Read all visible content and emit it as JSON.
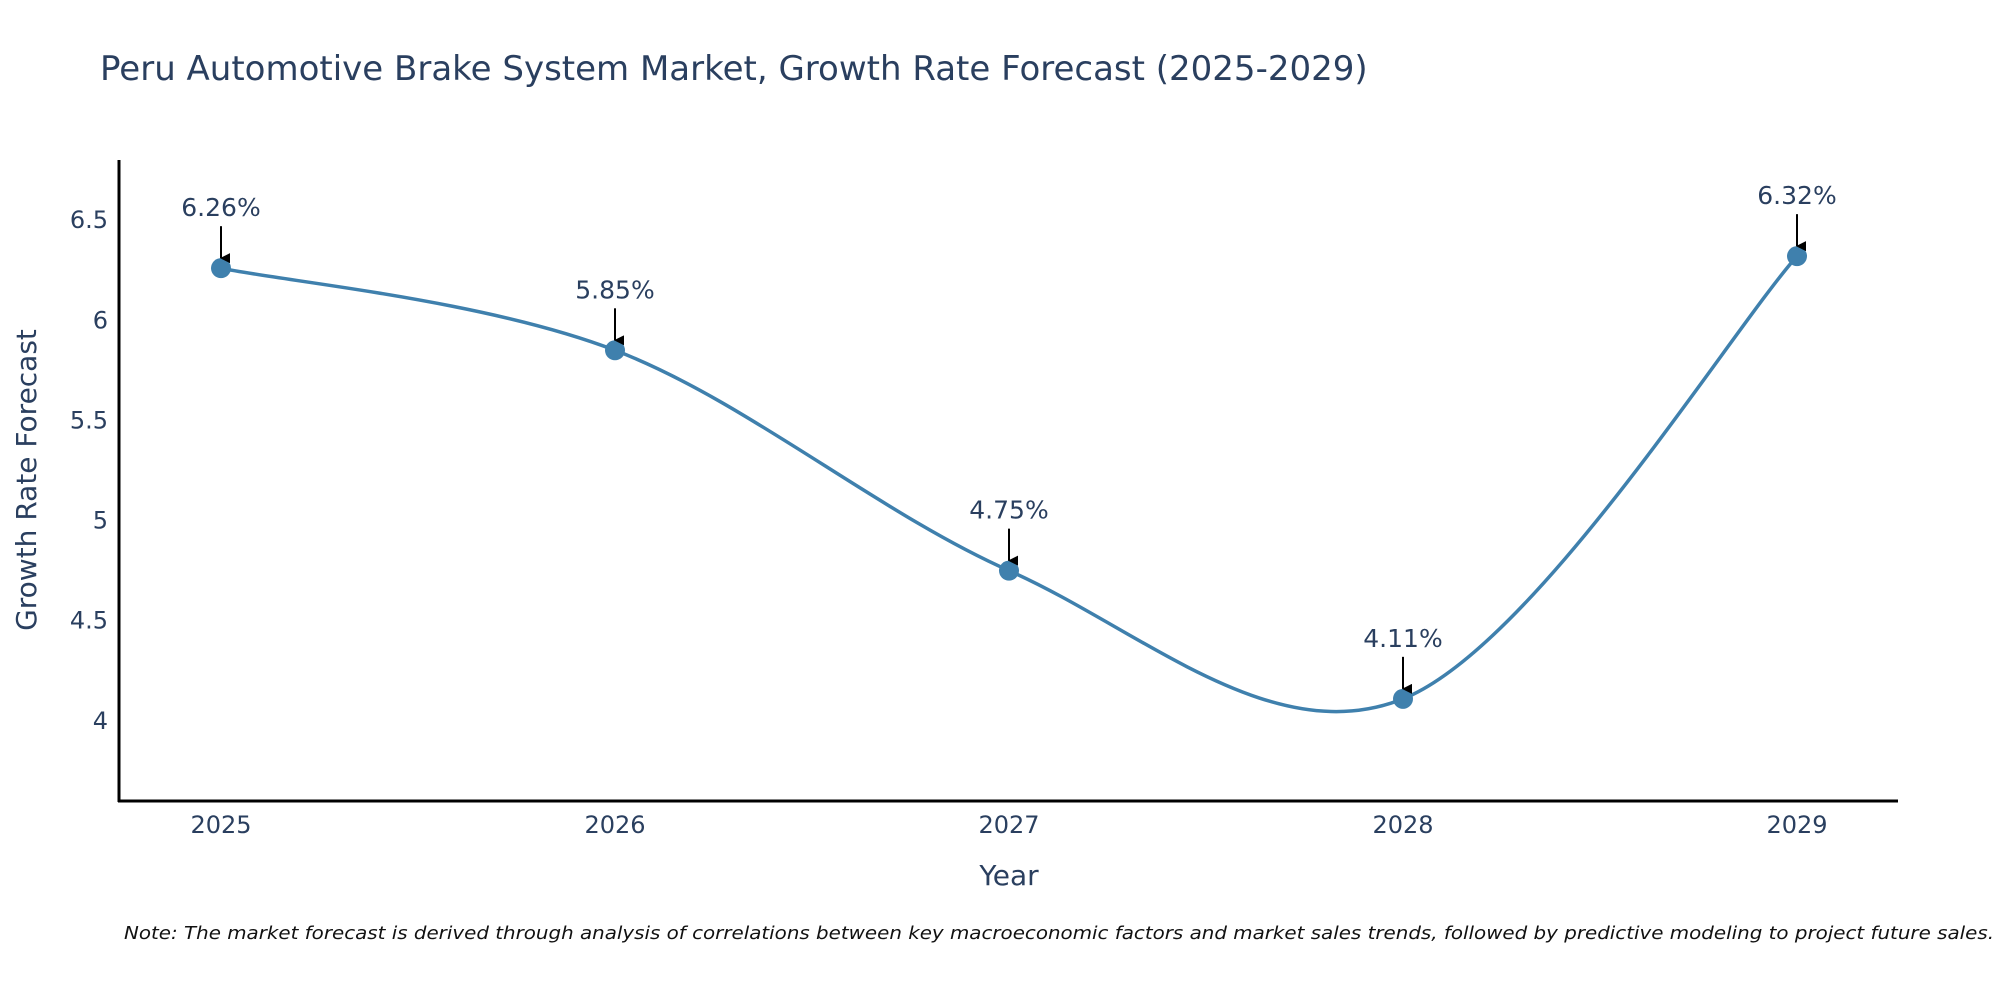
{
  "chart_data": {
    "type": "line",
    "title": "Peru Automotive Brake System Market, Growth Rate Forecast (2025-2029)",
    "xlabel": "Year",
    "ylabel": "Growth Rate Forecast",
    "categories": [
      "2025",
      "2026",
      "2027",
      "2028",
      "2029"
    ],
    "values": [
      6.26,
      5.85,
      4.75,
      4.11,
      6.32
    ],
    "data_labels": [
      "6.26%",
      "5.85%",
      "4.75%",
      "4.11%",
      "6.32%"
    ],
    "y_ticks": [
      4,
      4.5,
      5,
      5.5,
      6,
      6.5
    ],
    "y_tick_labels": [
      "4",
      "4.5",
      "5",
      "5.5",
      "6",
      "6.5"
    ],
    "ylim": [
      3.6,
      6.8
    ],
    "grid": false,
    "line_color": "#3f80ad",
    "marker_color": "#3f80ad",
    "arrow_color": "#000000",
    "note": "Note: The market forecast is derived through analysis of correlations between key macroeconomic factors and market sales trends, followed by predictive modeling to project future sales."
  }
}
